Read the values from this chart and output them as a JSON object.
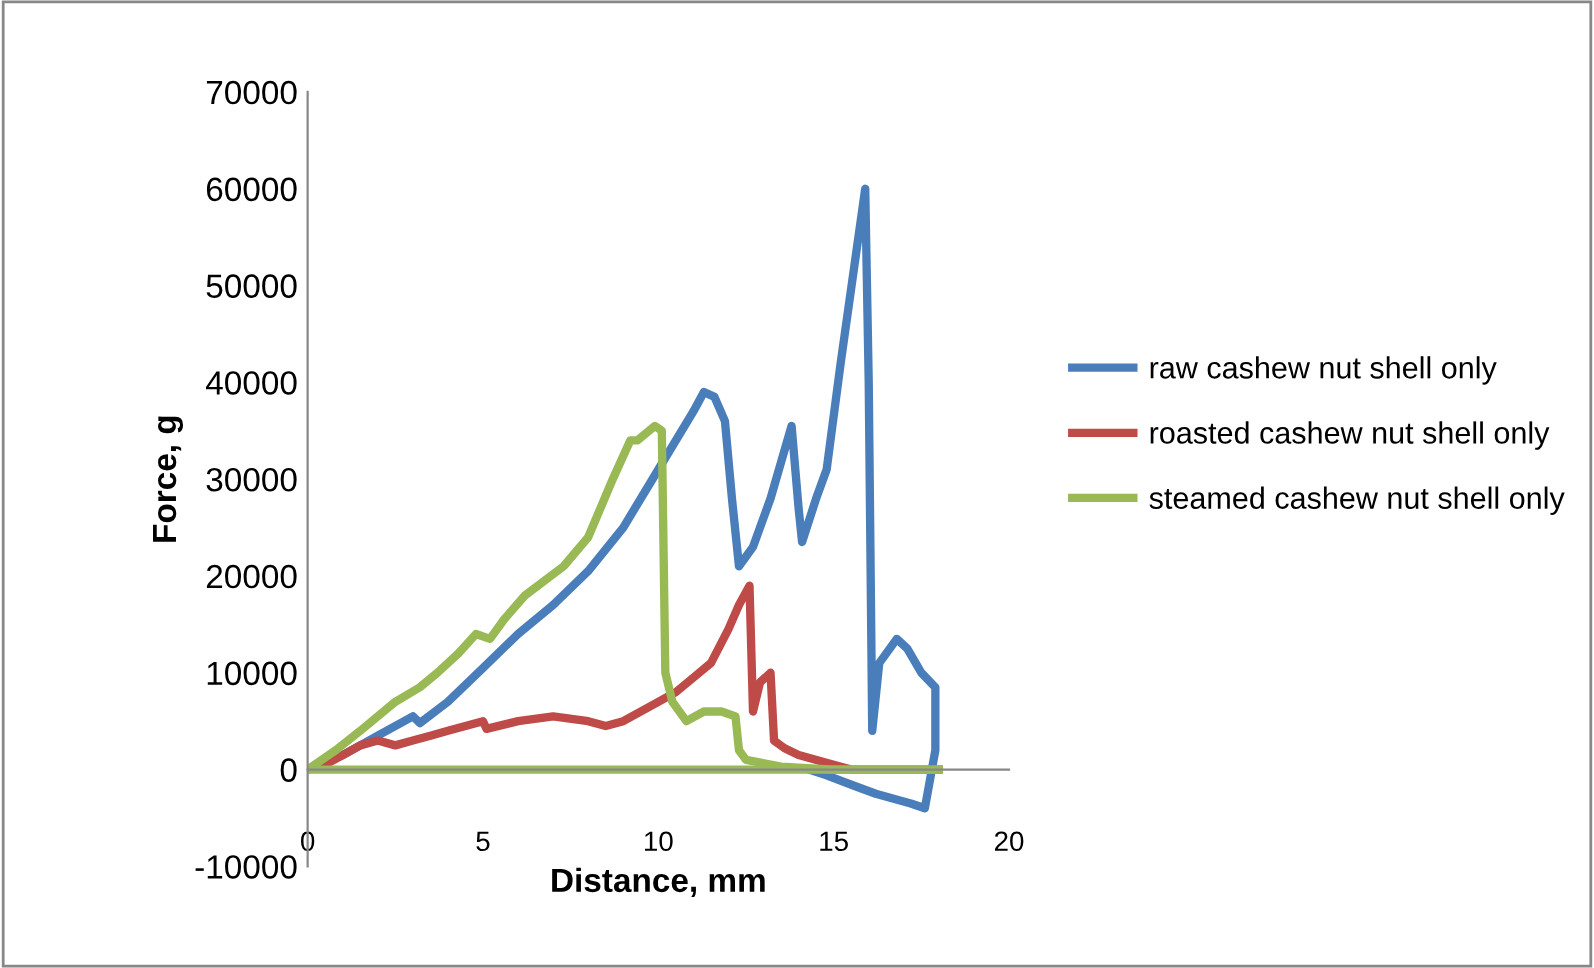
{
  "chart_data": {
    "type": "line",
    "xlabel": "Distance, mm",
    "ylabel": "Force, g",
    "xlim": [
      0,
      20
    ],
    "ylim": [
      -10000,
      70000
    ],
    "xticks": [
      0,
      5,
      10,
      15,
      20
    ],
    "yticks": [
      -10000,
      0,
      10000,
      20000,
      30000,
      40000,
      50000,
      60000,
      70000
    ],
    "grid": false,
    "legend": "right",
    "marker": "none",
    "line_style": "solid",
    "series": [
      {
        "name": "raw cashew nut shell only",
        "color": "#4a7ebb",
        "x": [
          0,
          1,
          2,
          3,
          3.2,
          4,
          5,
          6,
          7,
          8,
          9,
          10,
          11,
          11.3,
          11.6,
          11.9,
          12.1,
          12.3,
          12.7,
          13.2,
          13.8,
          14,
          14.1,
          14.5,
          14.8,
          15.2,
          15.9,
          16.0,
          16.1,
          16.3,
          16.8,
          17.1,
          17.5,
          17.9,
          17.9,
          17.6,
          17.2,
          16.2,
          15.6,
          14.8,
          14.3
        ],
        "values": [
          0,
          1500,
          3500,
          5500,
          4800,
          7000,
          10500,
          14000,
          17000,
          20500,
          25000,
          31000,
          37000,
          39000,
          38500,
          36000,
          28000,
          21000,
          23000,
          28000,
          35500,
          27000,
          23500,
          28000,
          31000,
          42000,
          60000,
          40000,
          4000,
          11000,
          13500,
          12500,
          10000,
          8500,
          2000,
          -4000,
          -3500,
          -2500,
          -1700,
          -600,
          0
        ]
      },
      {
        "name": "roasted cashew nut shell only",
        "color": "#be4b48",
        "x": [
          0,
          0.5,
          1,
          1.5,
          2,
          2.5,
          3,
          3.5,
          4,
          5,
          5.1,
          6,
          7,
          8,
          8.5,
          9,
          10,
          10.5,
          11,
          11.5,
          12,
          12.3,
          12.6,
          12.7,
          12.9,
          13.2,
          13.3,
          13.6,
          14,
          15,
          15.5,
          18
        ],
        "values": [
          0,
          500,
          1500,
          2500,
          3000,
          2500,
          3000,
          3500,
          4000,
          5000,
          4200,
          5000,
          5500,
          5000,
          4500,
          5000,
          7000,
          8000,
          9500,
          11000,
          14500,
          17000,
          19000,
          6000,
          9000,
          10000,
          3000,
          2200,
          1500,
          500,
          0,
          0
        ]
      },
      {
        "name": "steamed cashew nut shell only",
        "color": "#98b954",
        "x": [
          0,
          0.8,
          1.5,
          2.5,
          3.2,
          3.7,
          4.3,
          4.8,
          5.2,
          5.6,
          6.2,
          7.3,
          8,
          8.7,
          9.2,
          9.4,
          9.9,
          10.1,
          10.2,
          10.4,
          10.8,
          11.3,
          11.8,
          12.2,
          12.3,
          12.5,
          13.5,
          15,
          18
        ],
        "values": [
          0,
          2000,
          4000,
          7000,
          8500,
          10000,
          12000,
          14000,
          13500,
          15500,
          18000,
          21000,
          24000,
          30000,
          34000,
          34000,
          35500,
          35000,
          10000,
          7000,
          5000,
          6000,
          6000,
          5500,
          2000,
          1000,
          300,
          0,
          0
        ]
      },
      {
        "color": "#98b954",
        "x": [
          18,
          0
        ],
        "values": [
          0,
          0
        ]
      }
    ]
  }
}
